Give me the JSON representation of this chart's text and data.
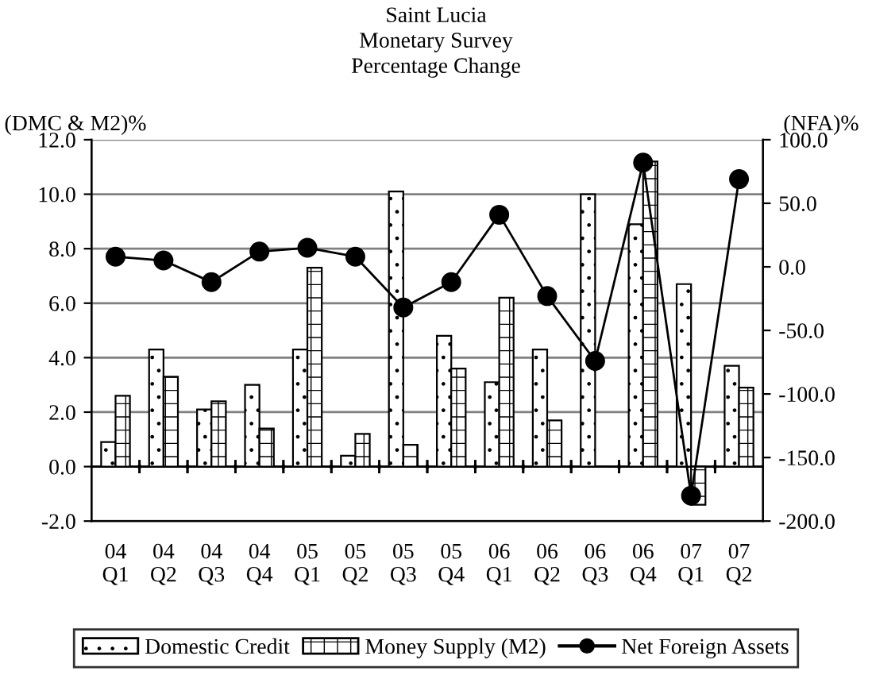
{
  "chart_data": {
    "type": "bar",
    "title": "Saint Lucia\nMonetary Survey\nPercentage Change",
    "ylabel": "(DMC & M2)%",
    "y2label": "(NFA)%",
    "categories": [
      "04\nQ1",
      "04\nQ2",
      "04\nQ3",
      "04\nQ4",
      "05\nQ1",
      "05\nQ2",
      "05\nQ3",
      "05\nQ4",
      "06\nQ1",
      "06\nQ2",
      "06\nQ3",
      "06\nQ4",
      "07\nQ1",
      "07\nQ2"
    ],
    "series": [
      {
        "name": "Domestic Credit",
        "color": "#000000",
        "values": [
          0.9,
          4.3,
          2.1,
          3.0,
          4.3,
          0.4,
          10.1,
          4.8,
          3.1,
          4.3,
          10.0,
          8.9,
          6.7,
          3.7
        ]
      },
      {
        "name": "Money Supply (M2)",
        "color": "#000000",
        "values": [
          2.6,
          3.3,
          2.4,
          1.4,
          7.3,
          1.2,
          0.8,
          3.6,
          6.2,
          1.7,
          0.0,
          11.2,
          -1.4,
          2.9
        ]
      },
      {
        "name": "Net Foreign Assets",
        "type": "line",
        "axis": "y2",
        "color": "#000000",
        "values": [
          8,
          5,
          -12,
          12,
          15,
          8,
          -32,
          -12,
          41,
          -23,
          -74,
          82,
          -180,
          69
        ]
      }
    ],
    "ylim": [
      -2,
      12
    ],
    "yticks": [
      {
        "value": -2,
        "label": "-2.0"
      },
      {
        "value": 0,
        "label": "0.0"
      },
      {
        "value": 2,
        "label": "2.0"
      },
      {
        "value": 4,
        "label": "4.0"
      },
      {
        "value": 6,
        "label": "6.0"
      },
      {
        "value": 8,
        "label": "8.0"
      },
      {
        "value": 10,
        "label": "10.0"
      },
      {
        "value": 12,
        "label": "12.0"
      }
    ],
    "y2lim": [
      -200,
      100
    ],
    "y2ticks": [
      {
        "value": -200,
        "label": "-200.0"
      },
      {
        "value": -150,
        "label": "-150.0"
      },
      {
        "value": -100,
        "label": "-100.0"
      },
      {
        "value": -50,
        "label": "-50.0"
      },
      {
        "value": 0,
        "label": "0.0"
      },
      {
        "value": 50,
        "label": "50.0"
      },
      {
        "value": 100,
        "label": "100.0"
      }
    ],
    "ref_lines": [
      {
        "axis": "y",
        "value": 0,
        "color": "#000000"
      }
    ],
    "grid": "y",
    "legend": "bottom",
    "marker": "circle",
    "line_style": "solid"
  }
}
